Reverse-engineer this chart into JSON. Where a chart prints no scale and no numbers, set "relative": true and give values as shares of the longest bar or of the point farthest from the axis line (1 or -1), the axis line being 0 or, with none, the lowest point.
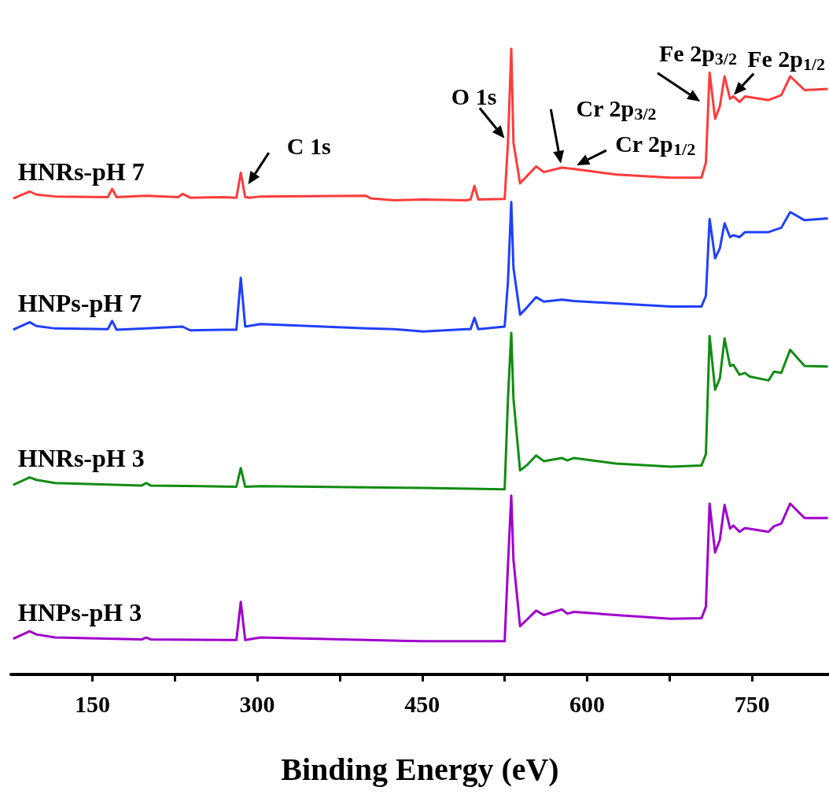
{
  "chart_data": {
    "type": "line",
    "relative": true,
    "xlabel": "Binding Energy (eV)",
    "xlim": [
      76,
      820
    ],
    "xticks": [
      150,
      {
        "value": 225,
        "label": null
      },
      300,
      {
        "value": 375,
        "label": null
      },
      450,
      {
        "value": 525,
        "label": null
      },
      600,
      {
        "value": 675,
        "label": null
      },
      750
    ],
    "grid": false,
    "legend": false,
    "series": [
      {
        "name": "HNRs-pH 7",
        "color": "#ff3b3b",
        "x": [
          78,
          93,
          99,
          116,
          164,
          168,
          172,
          199,
          228,
          232,
          239,
          269,
          281,
          285,
          289,
          293,
          303,
          399,
          403,
          424,
          451,
          490,
          494,
          497.5,
          501,
          525,
          528,
          531,
          533,
          539,
          545.5,
          553.6,
          560.6,
          577,
          588,
          626,
          676,
          704,
          708,
          711.4,
          716.4,
          720.7,
          725,
          730,
          733,
          738.6,
          743.6,
          765,
          776.6,
          784.7,
          797.8,
          819
        ],
        "values": [
          0.761,
          0.772,
          0.767,
          0.764,
          0.763,
          0.776,
          0.763,
          0.765,
          0.763,
          0.768,
          0.762,
          0.763,
          0.762,
          0.802,
          0.763,
          0.762,
          0.764,
          0.765,
          0.761,
          0.758,
          0.759,
          0.758,
          0.759,
          0.781,
          0.759,
          0.76,
          0.85,
          1.0,
          0.85,
          0.785,
          0.797,
          0.812,
          0.803,
          0.81,
          0.808,
          0.799,
          0.794,
          0.794,
          0.818,
          0.962,
          0.888,
          0.908,
          0.956,
          0.92,
          0.924,
          0.915,
          0.924,
          0.918,
          0.926,
          0.956,
          0.934,
          0.936
        ]
      },
      {
        "name": "HNPs-pH 7",
        "color": "#1f3fff",
        "x": [
          78,
          93,
          99,
          116,
          164,
          168,
          172,
          199,
          232,
          239,
          269,
          281,
          285,
          289,
          303,
          399,
          424,
          451,
          490,
          494,
          497.5,
          501,
          525,
          528,
          531,
          533,
          539,
          545.5,
          553.6,
          560.6,
          577,
          588,
          626,
          676,
          704,
          708,
          711.4,
          716.4,
          720.7,
          725,
          730,
          733,
          738.6,
          743.6,
          765,
          776.6,
          784.7,
          797.8,
          819
        ],
        "values": [
          0.551,
          0.563,
          0.557,
          0.553,
          0.552,
          0.565,
          0.551,
          0.553,
          0.556,
          0.55,
          0.551,
          0.551,
          0.634,
          0.556,
          0.56,
          0.553,
          0.552,
          0.548,
          0.552,
          0.552,
          0.57,
          0.552,
          0.556,
          0.628,
          0.755,
          0.65,
          0.575,
          0.587,
          0.603,
          0.596,
          0.599,
          0.597,
          0.593,
          0.588,
          0.588,
          0.605,
          0.728,
          0.665,
          0.681,
          0.721,
          0.699,
          0.702,
          0.699,
          0.707,
          0.707,
          0.714,
          0.739,
          0.726,
          0.729
        ]
      },
      {
        "name": "HNRs-pH 3",
        "color": "#128c12",
        "x": [
          78,
          93,
          99,
          116,
          195,
          199,
          203,
          281,
          285,
          289,
          303,
          451,
          525,
          528,
          531,
          533,
          539,
          545.5,
          553.6,
          560.6,
          577,
          582,
          588,
          626,
          676,
          704,
          708,
          711.4,
          716.4,
          720.7,
          725,
          730,
          733,
          738.6,
          743.6,
          748,
          765,
          770,
          776.6,
          784.7,
          797.8,
          819
        ],
        "values": [
          0.303,
          0.315,
          0.311,
          0.306,
          0.302,
          0.306,
          0.302,
          0.3,
          0.33,
          0.3,
          0.301,
          0.298,
          0.296,
          0.441,
          0.546,
          0.441,
          0.326,
          0.335,
          0.35,
          0.341,
          0.346,
          0.342,
          0.346,
          0.337,
          0.332,
          0.334,
          0.352,
          0.541,
          0.455,
          0.473,
          0.537,
          0.493,
          0.495,
          0.479,
          0.482,
          0.476,
          0.47,
          0.484,
          0.482,
          0.519,
          0.493,
          0.492
        ]
      },
      {
        "name": "HNPs-pH 3",
        "color": "#a000cc",
        "x": [
          78,
          93,
          99,
          116,
          195,
          199,
          203,
          281,
          285,
          289,
          303,
          451,
          525,
          528,
          531,
          533,
          539,
          545.5,
          553.6,
          560.6,
          577,
          582,
          588,
          626,
          676,
          704,
          708,
          711.4,
          716.4,
          720.7,
          725,
          730,
          733,
          738.6,
          743.6,
          765,
          770,
          776.6,
          784.7,
          797.8,
          819
        ],
        "values": [
          0.057,
          0.069,
          0.064,
          0.059,
          0.056,
          0.059,
          0.056,
          0.055,
          0.116,
          0.055,
          0.059,
          0.053,
          0.053,
          0.175,
          0.286,
          0.183,
          0.077,
          0.088,
          0.102,
          0.095,
          0.104,
          0.097,
          0.1,
          0.095,
          0.089,
          0.09,
          0.108,
          0.273,
          0.195,
          0.215,
          0.271,
          0.233,
          0.238,
          0.228,
          0.234,
          0.228,
          0.237,
          0.241,
          0.273,
          0.25,
          0.25
        ]
      }
    ],
    "annotations": [
      {
        "text": "C 1s",
        "x": 289,
        "y": 0.776
      },
      {
        "text": "O 1s",
        "x": 528,
        "y": 0.85
      },
      {
        "text": "Cr 2p$_{3/2}$",
        "x": 577,
        "y": 0.808
      },
      {
        "text": "Cr 2p$_{1/2}$",
        "x": 586,
        "y": 0.81
      },
      {
        "text": "Fe 2p$_{3/2}$",
        "x": 707,
        "y": 0.911
      },
      {
        "text": "Fe 2p$_{1/2}$",
        "x": 730,
        "y": 0.92
      }
    ]
  }
}
